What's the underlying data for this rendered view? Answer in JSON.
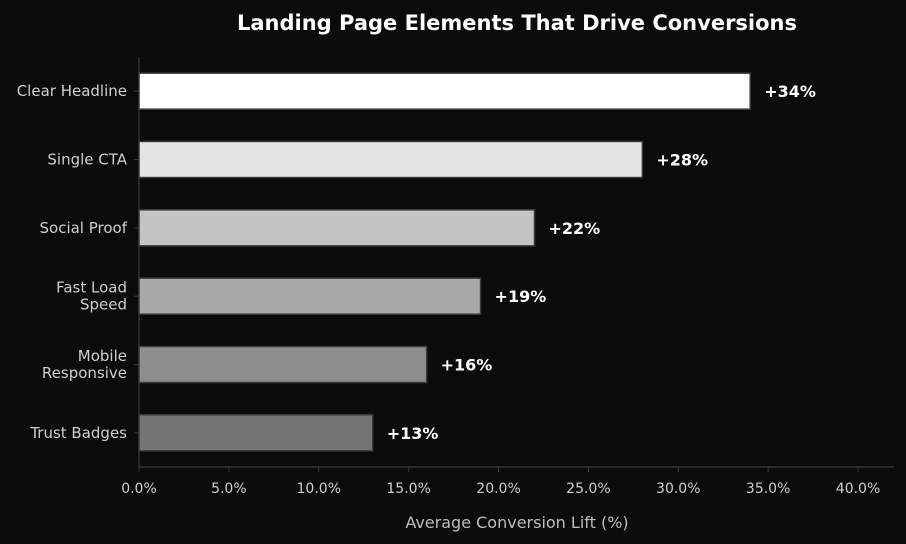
{
  "chart_data": {
    "type": "bar",
    "orientation": "horizontal",
    "title": "Landing Page Elements That Drive Conversions",
    "xlabel": "Average Conversion Lift (%)",
    "ylabel": "",
    "categories": [
      [
        "Clear Headline"
      ],
      [
        "Single CTA"
      ],
      [
        "Social Proof"
      ],
      [
        "Fast Load",
        "Speed"
      ],
      [
        "Mobile",
        "Responsive"
      ],
      [
        "Trust Badges"
      ]
    ],
    "values": [
      34,
      28,
      22,
      19,
      16,
      13
    ],
    "data_labels": [
      "+34%",
      "+28%",
      "+22%",
      "+19%",
      "+16%",
      "+13%"
    ],
    "bar_colors": [
      "#ffffff",
      "#e5e5e5",
      "#c4c4c4",
      "#a8a8a8",
      "#8e8e8e",
      "#747474"
    ],
    "xlim": [
      0,
      42
    ],
    "xticks": [
      0,
      5,
      10,
      15,
      20,
      25,
      30,
      35,
      40
    ],
    "xtick_labels": [
      "0.0%",
      "5.0%",
      "10.0%",
      "15.0%",
      "20.0%",
      "25.0%",
      "30.0%",
      "35.0%",
      "40.0%"
    ],
    "grid": false,
    "background": "#0b0b0b",
    "axis_color": "#3a3a3a"
  }
}
